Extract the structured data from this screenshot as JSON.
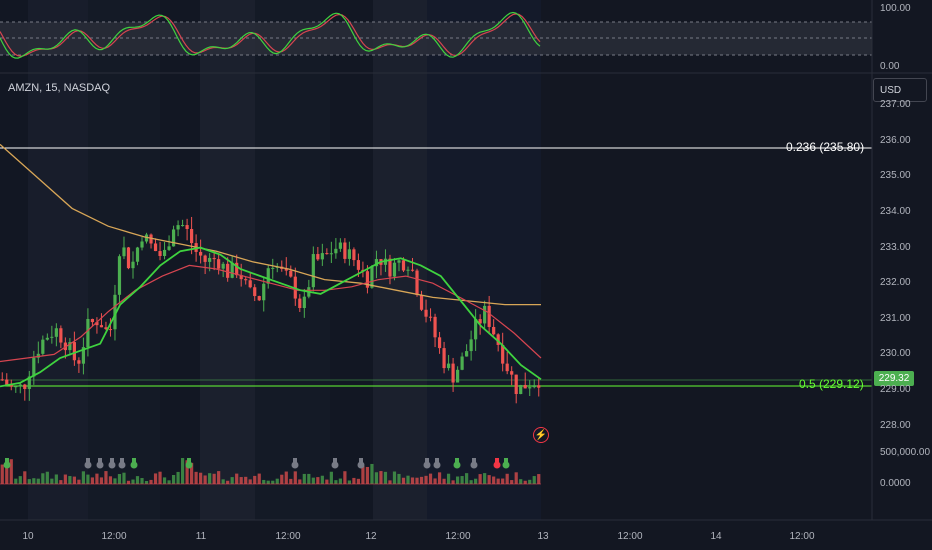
{
  "symbol_line": "AMZN, 15, NASDAQ",
  "currency_button": "USD",
  "current_price": "229.32",
  "fib_levels": [
    {
      "label": "0.236 (235.80)",
      "price": 235.8,
      "color": "#ffffff"
    },
    {
      "label": "0.5 (229.12)",
      "price": 229.12,
      "color": "#66ff33"
    }
  ],
  "price_axis_labels": [
    "237.00",
    "236.00",
    "235.00",
    "234.00",
    "233.00",
    "232.00",
    "231.00",
    "230.00",
    "229.00",
    "228.00"
  ],
  "oscillator_axis_labels": {
    "top": "100.00",
    "bottom": "0.00"
  },
  "volume_axis_labels": {
    "top": "500,000.00",
    "bottom": "0.0000"
  },
  "time_axis_labels": [
    "10",
    "12:00",
    "11",
    "12:00",
    "12",
    "12:00",
    "13",
    "12:00",
    "14",
    "12:00"
  ],
  "colors": {
    "up": "#26a69a",
    "up_bright": "#4caf50",
    "down": "#ef5350",
    "ma_fast": "#3fd33f",
    "ma_mid": "#d64550",
    "ma_slow": "#d8a657"
  },
  "chart_data": {
    "type": "candlestick",
    "symbol": "AMZN",
    "interval": "15",
    "exchange": "NASDAQ",
    "ylim": [
      227.5,
      237.2
    ],
    "close_path": [
      229.3,
      229.0,
      229.1,
      230.0,
      230.5,
      230.7,
      230.3,
      229.7,
      230.8,
      231.0,
      230.5,
      233.2,
      232.4,
      233.4,
      233.0,
      232.7,
      233.7,
      233.6,
      232.9,
      232.6,
      232.7,
      232.3,
      232.4,
      231.7,
      231.6,
      232.7,
      232.3,
      232.0,
      231.2,
      232.6,
      232.7,
      233.0,
      232.9,
      232.6,
      232.1,
      232.8,
      232.4,
      232.6,
      232.6,
      231.5,
      230.8,
      229.9,
      229.4,
      229.9,
      230.7,
      231.2,
      230.5,
      229.7,
      229.0,
      229.2,
      229.3
    ],
    "series": [
      {
        "name": "",
        "values": [
          229.1,
          229.2,
          229.5,
          229.9,
          230.1,
          230.3,
          231.4,
          231.9,
          232.5,
          232.9,
          233.0,
          232.8,
          232.4,
          232.2,
          232.0,
          231.8,
          231.7,
          232.0,
          232.3,
          232.6,
          232.7,
          232.5,
          232.2,
          231.5,
          230.8,
          230.3,
          229.7,
          229.3
        ]
      },
      {
        "name": "",
        "values": [
          229.8,
          229.9,
          230.0,
          230.5,
          231.2,
          231.8,
          232.2,
          232.5,
          232.4,
          232.2,
          232.0,
          231.8,
          231.8,
          231.9,
          232.1,
          232.2,
          232.0,
          231.6,
          231.2,
          230.6,
          229.9
        ]
      },
      {
        "name": "",
        "values": [
          235.9,
          235.0,
          234.1,
          233.6,
          233.3,
          233.1,
          232.9,
          232.6,
          232.4,
          232.1,
          232.0,
          231.8,
          231.6,
          231.5,
          231.4,
          231.4
        ]
      }
    ]
  }
}
